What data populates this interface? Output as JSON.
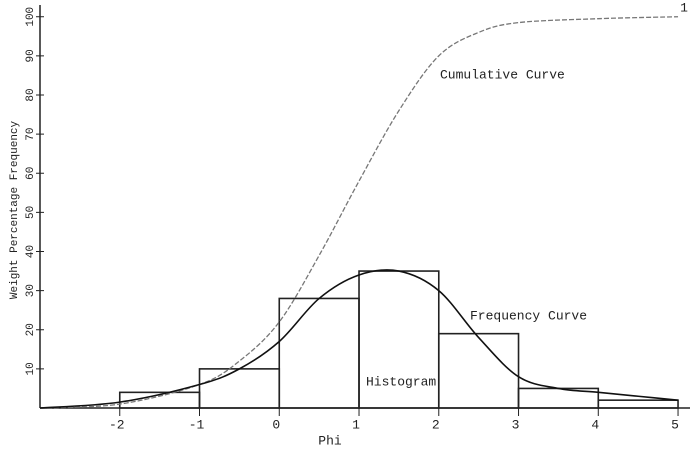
{
  "page_number": "1",
  "chart_data": {
    "type": "histogram",
    "y_label": "Weight Percentage Frequency",
    "x_label": "Phi",
    "bins": [
      -2,
      -1,
      0,
      1,
      2,
      3,
      4,
      5
    ],
    "values": [
      4,
      10,
      28,
      35,
      19,
      5,
      2
    ],
    "color": "#222222",
    "xlim": [
      -3,
      5.15
    ],
    "ylim": [
      0,
      103
    ],
    "xticks": [
      -2,
      -1,
      0,
      1,
      2,
      3,
      4,
      5
    ],
    "yticks": [
      10,
      20,
      30,
      40,
      50,
      60,
      70,
      80,
      90,
      100
    ],
    "series": [
      {
        "name": "Cumulative Curve",
        "color": "#777777",
        "x": [
          -3,
          -2,
          -1,
          -0.5,
          0,
          0.5,
          1,
          1.5,
          2,
          2.5,
          3,
          4,
          5
        ],
        "values": [
          0,
          1,
          6,
          12,
          22,
          39,
          58,
          76,
          90,
          96,
          98.5,
          99.5,
          100
        ]
      },
      {
        "name": "Frequency Curve",
        "color": "#111111",
        "x": [
          -3,
          -2,
          -1,
          -0.5,
          0,
          0.5,
          1,
          1.5,
          2,
          2.5,
          3,
          3.5,
          4,
          4.5,
          5
        ],
        "values": [
          0,
          1.5,
          6,
          10,
          17,
          28,
          34,
          35,
          30,
          18,
          8,
          5,
          4,
          3,
          2
        ]
      }
    ],
    "histogram_label": "Histogram"
  }
}
